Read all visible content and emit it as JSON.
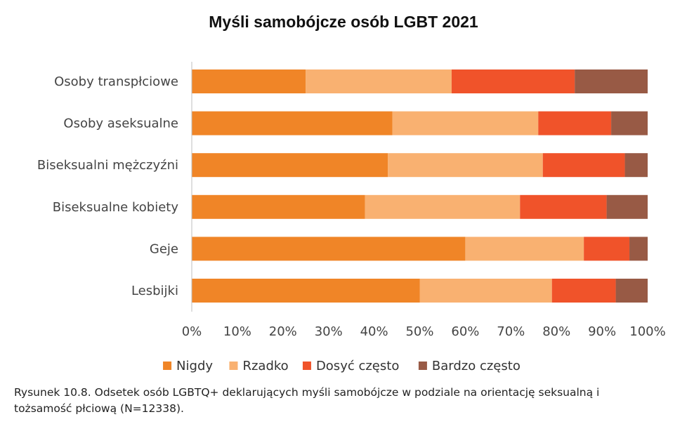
{
  "chart_data": {
    "type": "bar",
    "orientation": "horizontal",
    "stacked": true,
    "title": "Myśli samobójcze osób LGBT 2021",
    "categories": [
      "Osoby transpłciowe",
      "Osoby aseksualne",
      "Biseksualni mężczyźni",
      "Biseksualne kobiety",
      "Geje",
      "Lesbijki"
    ],
    "series": [
      {
        "name": "Nigdy",
        "color": "#f08527",
        "values": [
          25,
          44,
          43,
          38,
          60,
          50
        ]
      },
      {
        "name": "Rzadko",
        "color": "#f9b171",
        "values": [
          32,
          32,
          34,
          34,
          26,
          29
        ]
      },
      {
        "name": "Dosyć często",
        "color": "#f0532a",
        "values": [
          27,
          16,
          18,
          19,
          10,
          14
        ]
      },
      {
        "name": "Bardzo często",
        "color": "#985a45",
        "values": [
          16,
          8,
          5,
          9,
          4,
          7
        ]
      }
    ],
    "xlim": [
      0,
      100
    ],
    "xticks": [
      "0%",
      "10%",
      "20%",
      "30%",
      "40%",
      "50%",
      "60%",
      "70%",
      "80%",
      "90%",
      "100%"
    ],
    "xlabel": "",
    "ylabel": "",
    "grid": false,
    "legend_position": "bottom"
  },
  "caption": {
    "line1": "Rysunek 10.8. Odsetek osób LGBTQ+ deklarujących myśli samobójcze w podziale na orientację seksualną i",
    "line2": "tożsamość płciową (N=12338)."
  }
}
